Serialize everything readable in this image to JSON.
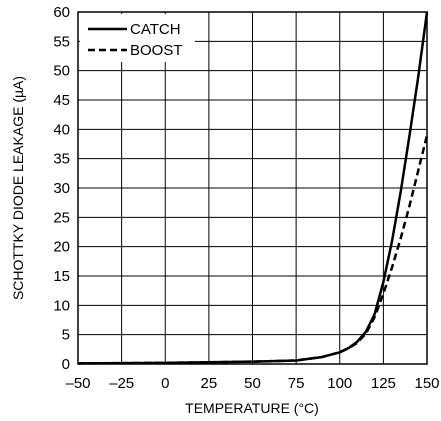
{
  "chart_data": {
    "type": "line",
    "xlabel": "TEMPERATURE (°C)",
    "ylabel": "SCHOTTKY DIODE LEAKAGE (µA)",
    "xlim": [
      -50,
      150
    ],
    "ylim": [
      0,
      60
    ],
    "x_ticks": [
      -50,
      -25,
      0,
      25,
      50,
      75,
      100,
      125,
      150
    ],
    "x_tick_labels": [
      "–50",
      "–25",
      "0",
      "25",
      "50",
      "75",
      "100",
      "125",
      "150"
    ],
    "y_ticks": [
      0,
      5,
      10,
      15,
      20,
      25,
      30,
      35,
      40,
      45,
      50,
      55,
      60
    ],
    "y_tick_labels": [
      "0",
      "5",
      "10",
      "15",
      "20",
      "25",
      "30",
      "35",
      "40",
      "45",
      "50",
      "55",
      "60"
    ],
    "grid": true,
    "legend_position": "top-left",
    "series": [
      {
        "name": "CATCH",
        "style": "solid",
        "x": [
          -50,
          -25,
          0,
          25,
          50,
          75,
          90,
          100,
          105,
          110,
          115,
          120,
          125,
          130,
          135,
          140,
          145,
          150
        ],
        "y": [
          0.1,
          0.15,
          0.2,
          0.3,
          0.4,
          0.6,
          1.2,
          2.0,
          2.7,
          3.8,
          5.5,
          8.5,
          14.0,
          21.0,
          29.5,
          39.0,
          49.0,
          60.0
        ]
      },
      {
        "name": "BOOST",
        "style": "dashed",
        "x": [
          -50,
          -25,
          0,
          25,
          50,
          75,
          90,
          100,
          105,
          110,
          115,
          120,
          125,
          130,
          135,
          140,
          145,
          150
        ],
        "y": [
          0.1,
          0.15,
          0.2,
          0.3,
          0.4,
          0.6,
          1.2,
          2.0,
          2.7,
          3.6,
          5.2,
          8.0,
          12.0,
          16.5,
          21.5,
          27.0,
          33.0,
          39.0
        ]
      }
    ]
  }
}
